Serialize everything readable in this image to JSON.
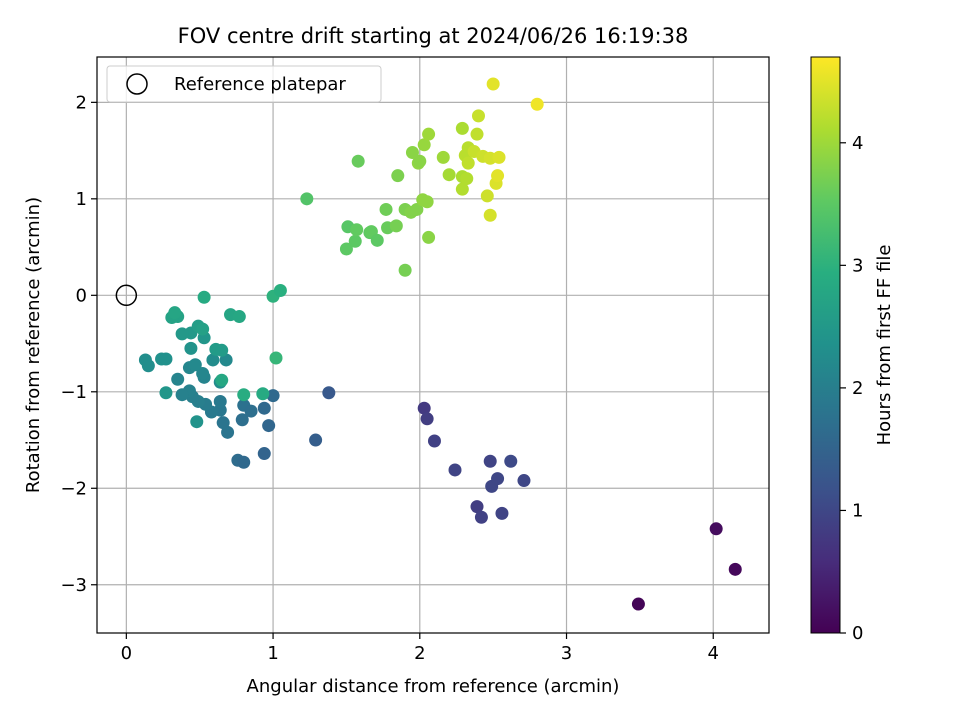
{
  "chart_data": {
    "type": "scatter",
    "title": "FOV centre drift starting at 2024/06/26 16:19:38",
    "xlabel": "Angular distance from reference (arcmin)",
    "ylabel": "Rotation from reference (arcmin)",
    "xlim": [
      -0.2,
      4.38
    ],
    "ylim": [
      -3.5,
      2.47
    ],
    "x_ticks": [
      0,
      1,
      2,
      3,
      4
    ],
    "x_tick_labels": [
      "0",
      "1",
      "2",
      "3",
      "4"
    ],
    "y_ticks": [
      -3,
      -2,
      -1,
      0,
      1,
      2
    ],
    "y_tick_labels": [
      "−3",
      "−2",
      "−1",
      "0",
      "1",
      "2"
    ],
    "grid": true,
    "legend": {
      "placement": "top-left",
      "entries": [
        "Reference platepar"
      ]
    },
    "reference_point": {
      "x": 0,
      "y": 0,
      "label": "Reference platepar"
    },
    "colorbar": {
      "label": "Hours from first FF file",
      "colormap": "viridis",
      "range": [
        0,
        4.7
      ],
      "ticks": [
        0,
        1,
        2,
        3,
        4
      ],
      "tick_labels": [
        "0",
        "1",
        "2",
        "3",
        "4"
      ]
    },
    "points": [
      {
        "x": 3.49,
        "y": -3.2,
        "h": 0.05
      },
      {
        "x": 4.02,
        "y": -2.42,
        "h": 0.15
      },
      {
        "x": 4.15,
        "y": -2.84,
        "h": 0.1
      },
      {
        "x": 2.03,
        "y": -1.17,
        "h": 0.8
      },
      {
        "x": 2.05,
        "y": -1.28,
        "h": 0.85
      },
      {
        "x": 2.1,
        "y": -1.51,
        "h": 0.9
      },
      {
        "x": 2.24,
        "y": -1.81,
        "h": 0.95
      },
      {
        "x": 2.39,
        "y": -2.19,
        "h": 0.85
      },
      {
        "x": 2.42,
        "y": -2.3,
        "h": 0.9
      },
      {
        "x": 2.48,
        "y": -1.72,
        "h": 0.95
      },
      {
        "x": 2.49,
        "y": -1.98,
        "h": 1.0
      },
      {
        "x": 2.53,
        "y": -1.9,
        "h": 1.0
      },
      {
        "x": 2.56,
        "y": -2.26,
        "h": 0.95
      },
      {
        "x": 2.62,
        "y": -1.72,
        "h": 1.05
      },
      {
        "x": 2.71,
        "y": -1.92,
        "h": 1.0
      },
      {
        "x": 1.38,
        "y": -1.01,
        "h": 1.3
      },
      {
        "x": 1.29,
        "y": -1.5,
        "h": 1.4
      },
      {
        "x": 0.94,
        "y": -1.64,
        "h": 1.5
      },
      {
        "x": 0.97,
        "y": -1.35,
        "h": 1.55
      },
      {
        "x": 0.94,
        "y": -1.17,
        "h": 1.6
      },
      {
        "x": 1.0,
        "y": -1.04,
        "h": 1.6
      },
      {
        "x": 0.76,
        "y": -1.71,
        "h": 1.65
      },
      {
        "x": 0.8,
        "y": -1.73,
        "h": 1.6
      },
      {
        "x": 0.79,
        "y": -1.29,
        "h": 1.7
      },
      {
        "x": 0.8,
        "y": -1.14,
        "h": 1.75
      },
      {
        "x": 0.85,
        "y": -1.2,
        "h": 1.7
      },
      {
        "x": 0.69,
        "y": -1.42,
        "h": 1.8
      },
      {
        "x": 0.66,
        "y": -1.32,
        "h": 1.8
      },
      {
        "x": 0.64,
        "y": -1.19,
        "h": 1.85
      },
      {
        "x": 0.64,
        "y": -1.1,
        "h": 1.9
      },
      {
        "x": 0.58,
        "y": -1.21,
        "h": 1.9
      },
      {
        "x": 0.54,
        "y": -1.13,
        "h": 1.95
      },
      {
        "x": 0.49,
        "y": -1.1,
        "h": 2.0
      },
      {
        "x": 0.45,
        "y": -1.05,
        "h": 2.0
      },
      {
        "x": 0.43,
        "y": -0.99,
        "h": 2.05
      },
      {
        "x": 0.38,
        "y": -1.03,
        "h": 2.05
      },
      {
        "x": 0.35,
        "y": -0.87,
        "h": 2.1
      },
      {
        "x": 0.53,
        "y": -0.85,
        "h": 2.1
      },
      {
        "x": 0.52,
        "y": -0.81,
        "h": 2.15
      },
      {
        "x": 0.43,
        "y": -0.75,
        "h": 2.15
      },
      {
        "x": 0.47,
        "y": -0.72,
        "h": 2.2
      },
      {
        "x": 0.68,
        "y": -0.67,
        "h": 2.2
      },
      {
        "x": 0.59,
        "y": -0.67,
        "h": 2.25
      },
      {
        "x": 0.64,
        "y": -0.9,
        "h": 2.25
      },
      {
        "x": 0.15,
        "y": -0.73,
        "h": 2.3
      },
      {
        "x": 0.13,
        "y": -0.67,
        "h": 2.3
      },
      {
        "x": 0.24,
        "y": -0.66,
        "h": 2.35
      },
      {
        "x": 0.27,
        "y": -0.66,
        "h": 2.35
      },
      {
        "x": 0.44,
        "y": -0.55,
        "h": 2.4
      },
      {
        "x": 0.48,
        "y": -1.31,
        "h": 2.4
      },
      {
        "x": 0.27,
        "y": -1.01,
        "h": 2.45
      },
      {
        "x": 0.53,
        "y": -0.44,
        "h": 2.45
      },
      {
        "x": 0.44,
        "y": -0.39,
        "h": 2.5
      },
      {
        "x": 0.38,
        "y": -0.4,
        "h": 2.5
      },
      {
        "x": 0.61,
        "y": -0.56,
        "h": 2.55
      },
      {
        "x": 0.65,
        "y": -0.57,
        "h": 2.55
      },
      {
        "x": 0.49,
        "y": -0.32,
        "h": 2.6
      },
      {
        "x": 0.52,
        "y": -0.35,
        "h": 2.65
      },
      {
        "x": 0.35,
        "y": -0.22,
        "h": 2.7
      },
      {
        "x": 0.31,
        "y": -0.23,
        "h": 2.7
      },
      {
        "x": 0.33,
        "y": -0.18,
        "h": 2.75
      },
      {
        "x": 0.71,
        "y": -0.2,
        "h": 2.75
      },
      {
        "x": 0.77,
        "y": -0.22,
        "h": 2.8
      },
      {
        "x": 0.65,
        "y": -0.88,
        "h": 2.8
      },
      {
        "x": 0.93,
        "y": -1.02,
        "h": 2.85
      },
      {
        "x": 0.8,
        "y": -1.03,
        "h": 2.9
      },
      {
        "x": 0.53,
        "y": -0.02,
        "h": 2.85
      },
      {
        "x": 1.0,
        "y": -0.01,
        "h": 3.0
      },
      {
        "x": 1.05,
        "y": 0.05,
        "h": 2.95
      },
      {
        "x": 1.02,
        "y": -0.65,
        "h": 3.1
      },
      {
        "x": 1.23,
        "y": 1.0,
        "h": 3.4
      },
      {
        "x": 1.5,
        "y": 0.48,
        "h": 3.5
      },
      {
        "x": 1.51,
        "y": 0.71,
        "h": 3.45
      },
      {
        "x": 1.56,
        "y": 0.56,
        "h": 3.5
      },
      {
        "x": 1.57,
        "y": 0.68,
        "h": 3.55
      },
      {
        "x": 1.66,
        "y": 0.65,
        "h": 3.5
      },
      {
        "x": 1.67,
        "y": 0.66,
        "h": 3.55
      },
      {
        "x": 1.71,
        "y": 0.57,
        "h": 3.5
      },
      {
        "x": 1.58,
        "y": 1.39,
        "h": 3.6
      },
      {
        "x": 1.77,
        "y": 0.89,
        "h": 3.65
      },
      {
        "x": 1.78,
        "y": 0.7,
        "h": 3.6
      },
      {
        "x": 1.84,
        "y": 0.72,
        "h": 3.7
      },
      {
        "x": 1.85,
        "y": 1.24,
        "h": 3.75
      },
      {
        "x": 1.9,
        "y": 0.26,
        "h": 3.7
      },
      {
        "x": 1.9,
        "y": 0.89,
        "h": 3.75
      },
      {
        "x": 1.94,
        "y": 0.86,
        "h": 3.8
      },
      {
        "x": 1.95,
        "y": 1.48,
        "h": 3.85
      },
      {
        "x": 1.98,
        "y": 0.89,
        "h": 3.8
      },
      {
        "x": 1.99,
        "y": 1.37,
        "h": 3.9
      },
      {
        "x": 2.0,
        "y": 1.39,
        "h": 3.85
      },
      {
        "x": 2.02,
        "y": 0.99,
        "h": 3.9
      },
      {
        "x": 2.03,
        "y": 1.56,
        "h": 3.95
      },
      {
        "x": 2.05,
        "y": 0.97,
        "h": 3.9
      },
      {
        "x": 2.06,
        "y": 1.67,
        "h": 4.0
      },
      {
        "x": 2.06,
        "y": 0.6,
        "h": 3.85
      },
      {
        "x": 2.16,
        "y": 1.43,
        "h": 4.0
      },
      {
        "x": 2.2,
        "y": 1.25,
        "h": 4.05
      },
      {
        "x": 2.29,
        "y": 1.73,
        "h": 4.1
      },
      {
        "x": 2.29,
        "y": 1.23,
        "h": 4.1
      },
      {
        "x": 2.29,
        "y": 1.1,
        "h": 4.15
      },
      {
        "x": 2.31,
        "y": 1.45,
        "h": 4.2
      },
      {
        "x": 2.32,
        "y": 1.21,
        "h": 4.15
      },
      {
        "x": 2.33,
        "y": 1.37,
        "h": 4.25
      },
      {
        "x": 2.33,
        "y": 1.53,
        "h": 4.2
      },
      {
        "x": 2.37,
        "y": 1.49,
        "h": 4.3
      },
      {
        "x": 2.39,
        "y": 1.67,
        "h": 4.25
      },
      {
        "x": 2.4,
        "y": 1.86,
        "h": 4.3
      },
      {
        "x": 2.43,
        "y": 1.44,
        "h": 4.35
      },
      {
        "x": 2.46,
        "y": 1.03,
        "h": 4.35
      },
      {
        "x": 2.48,
        "y": 1.42,
        "h": 4.4
      },
      {
        "x": 2.48,
        "y": 0.83,
        "h": 4.4
      },
      {
        "x": 2.5,
        "y": 2.19,
        "h": 4.5
      },
      {
        "x": 2.52,
        "y": 1.16,
        "h": 4.45
      },
      {
        "x": 2.53,
        "y": 1.24,
        "h": 4.5
      },
      {
        "x": 2.54,
        "y": 1.43,
        "h": 4.45
      },
      {
        "x": 2.8,
        "y": 1.98,
        "h": 4.6
      }
    ]
  }
}
